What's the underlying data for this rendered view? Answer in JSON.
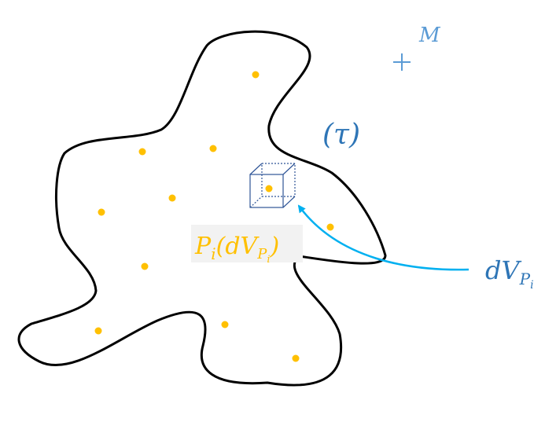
{
  "labels": {
    "M": "M",
    "tau": "(τ)",
    "pi_main": "P",
    "pi_sub": "i",
    "pi_open": "(",
    "pi_dv": "dV",
    "pi_P": "P",
    "pi_i": "i",
    "pi_close": ")",
    "dv_main": "dV",
    "dv_P": "P",
    "dv_i": "i"
  },
  "colors": {
    "outline": "#000000",
    "point": "#ffc000",
    "blue_label": "#5b9bd5",
    "dark_blue_label": "#2e75b6",
    "cube": "#2f5597",
    "arrow": "#00b0f0",
    "label_bg": "#f2f2f2"
  },
  "icons": {
    "marker": "plus-marker",
    "volume_element": "cube-icon"
  }
}
